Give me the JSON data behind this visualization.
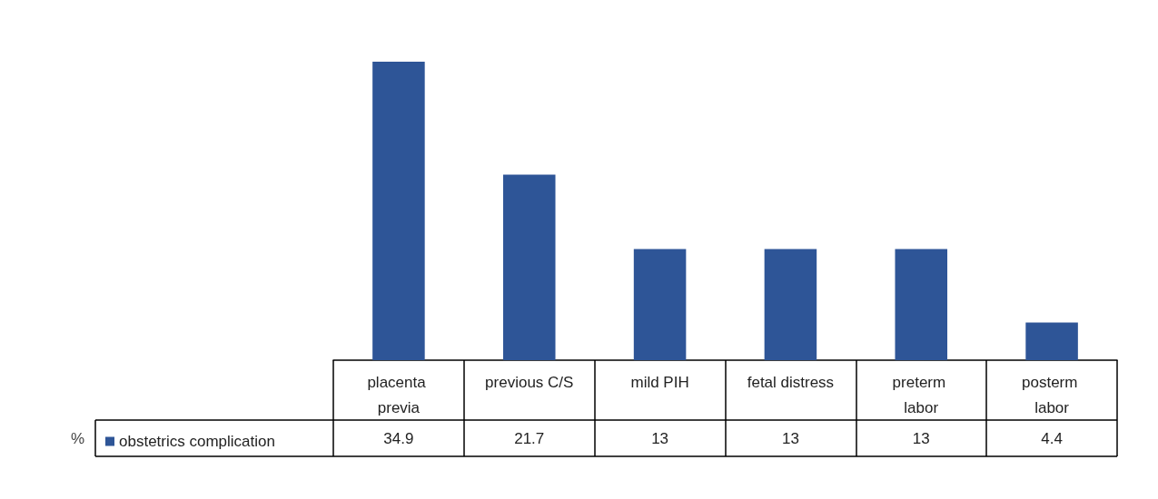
{
  "chart_data": {
    "type": "bar",
    "annotations": [
      "%"
    ],
    "categories": [
      "placenta previa",
      "previous C/S",
      "mild PIH",
      "fetal distress",
      "preterm labor",
      "posterm labor"
    ],
    "series": [
      {
        "name": "obstetrics complication",
        "color": "#2e5597",
        "values": [
          34.9,
          21.7,
          13,
          13,
          13,
          4.4
        ]
      }
    ],
    "data_labels": true,
    "legend": "bottom left",
    "grid": false
  }
}
